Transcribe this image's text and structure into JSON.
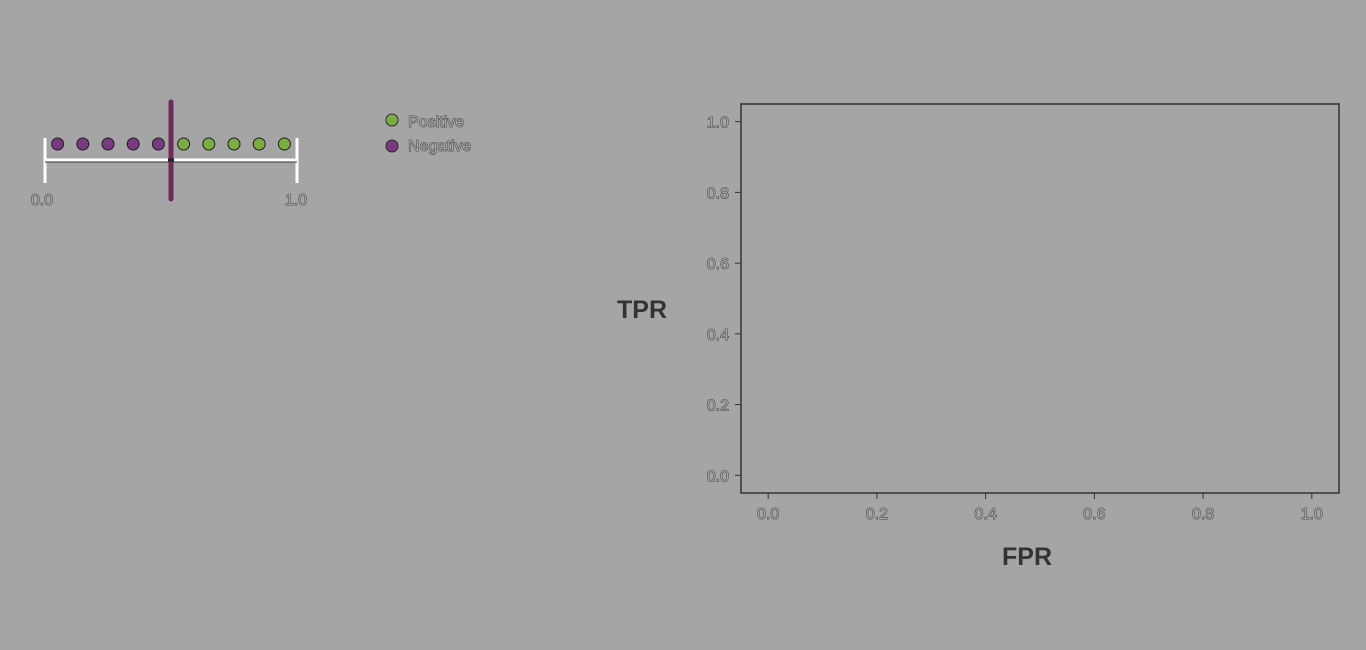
{
  "colors": {
    "background": "#a5a5a5",
    "positive": "#7cac42",
    "negative": "#7a3a82",
    "threshold": "#6e2a5a",
    "axis": "#333333"
  },
  "threshold_widget": {
    "min_label": "0.0",
    "max_label": "1.0",
    "threshold_value": 0.5,
    "points": [
      {
        "score": 0.05,
        "class": "negative"
      },
      {
        "score": 0.15,
        "class": "negative"
      },
      {
        "score": 0.25,
        "class": "negative"
      },
      {
        "score": 0.35,
        "class": "negative"
      },
      {
        "score": 0.45,
        "class": "negative"
      },
      {
        "score": 0.55,
        "class": "positive"
      },
      {
        "score": 0.65,
        "class": "positive"
      },
      {
        "score": 0.75,
        "class": "positive"
      },
      {
        "score": 0.85,
        "class": "positive"
      },
      {
        "score": 0.95,
        "class": "positive"
      }
    ]
  },
  "legend": {
    "positive_label": "Positive",
    "negative_label": "Negative"
  },
  "chart_data": {
    "type": "line",
    "xlabel": "FPR",
    "ylabel": "TPR",
    "xlim": [
      -0.05,
      1.05
    ],
    "ylim": [
      -0.05,
      1.05
    ],
    "xticks": [
      "0.0",
      "0.2",
      "0.4",
      "0.6",
      "0.8",
      "1.0"
    ],
    "yticks": [
      "0.0",
      "0.2",
      "0.4",
      "0.6",
      "0.8",
      "1.0"
    ],
    "series": [],
    "grid": false
  }
}
